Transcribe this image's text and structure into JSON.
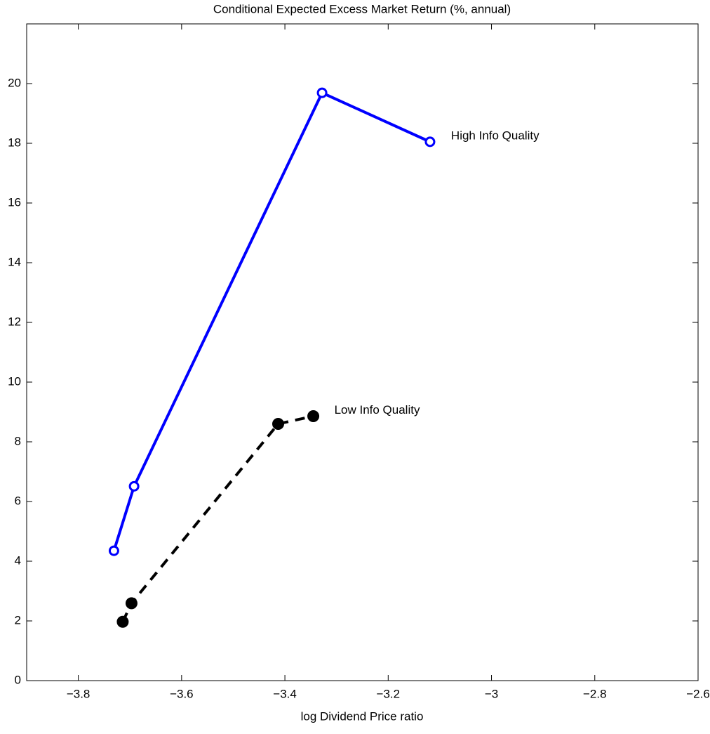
{
  "chart_data": {
    "type": "line",
    "title": "Conditional Expected Excess Market Return (%, annual)",
    "x_label": "log Dividend Price ratio",
    "xlim": [
      -3.9,
      -2.6
    ],
    "xticks": [
      {
        "value": -3.8,
        "label": "−3.8"
      },
      {
        "value": -3.6,
        "label": "−3.6"
      },
      {
        "value": -3.4,
        "label": "−3.4"
      },
      {
        "value": -3.2,
        "label": "−3.2"
      },
      {
        "value": -3,
        "label": "−3"
      },
      {
        "value": -2.8,
        "label": "−2.8"
      },
      {
        "value": -2.6,
        "label": "−2.6"
      }
    ],
    "ylim": [
      0,
      22
    ],
    "yticks": [
      0,
      2,
      4,
      6,
      8,
      10,
      12,
      14,
      16,
      18,
      20
    ],
    "grid": false,
    "series": [
      {
        "name": "High Info Quality",
        "color": "#0000ff",
        "marker": "open",
        "dashed": false,
        "x": [
          -3.731,
          -3.692,
          -3.328,
          -3.119
        ],
        "values": [
          4.35,
          6.51,
          19.69,
          18.05
        ]
      },
      {
        "name": "Low Info Quality",
        "color": "#000000",
        "marker": "filled",
        "dashed": true,
        "x": [
          -3.714,
          -3.697,
          -3.413,
          -3.345
        ],
        "values": [
          1.97,
          2.59,
          8.6,
          8.86
        ]
      }
    ]
  }
}
